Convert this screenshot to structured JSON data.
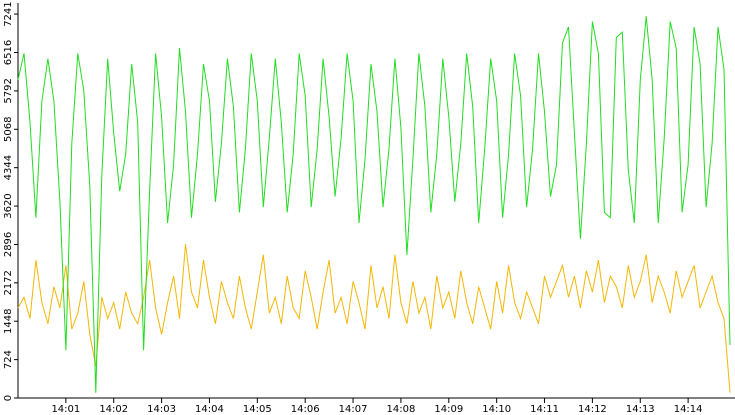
{
  "chart_data": {
    "type": "line",
    "series": [
      {
        "color": "#22dd22",
        "values": [
          6000,
          6500,
          5200,
          3400,
          5600,
          6400,
          5600,
          3700,
          900,
          4800,
          6500,
          5800,
          4000,
          100,
          4200,
          6400,
          5000,
          3900,
          4600,
          6300,
          5200,
          900,
          3900,
          6500,
          5300,
          3300,
          4400,
          6600,
          5400,
          3400,
          4600,
          6300,
          5600,
          3700,
          4800,
          6400,
          5500,
          3500,
          4700,
          6500,
          5600,
          3600,
          4900,
          6400,
          5200,
          3500,
          4600,
          6500,
          5700,
          3600,
          4700,
          6400,
          5300,
          3800,
          4900,
          6500,
          5600,
          3300,
          4500,
          6300,
          5400,
          3600,
          4700,
          6400,
          5100,
          2700,
          4500,
          6500,
          5500,
          3500,
          4600,
          6400,
          5300,
          3700,
          4800,
          6500,
          5500,
          3300,
          4700,
          6400,
          5600,
          3400,
          4600,
          6500,
          5700,
          3600,
          4700,
          6500,
          5400,
          3800,
          4400,
          6700,
          7000,
          5000,
          3000,
          4800,
          7100,
          6500,
          3500,
          3400,
          6800,
          6900,
          4300,
          3300,
          6000,
          7200,
          6000,
          3300,
          4900,
          7100,
          6600,
          3500,
          4400,
          7000,
          6300,
          3600,
          4800,
          7000,
          6200,
          1000
        ]
      },
      {
        "color": "#f2b705",
        "values": [
          1700,
          1900,
          1500,
          2600,
          1800,
          1400,
          2100,
          1700,
          2500,
          1300,
          1600,
          2200,
          1200,
          600,
          1900,
          1500,
          1800,
          1300,
          2000,
          1600,
          1400,
          1900,
          2600,
          1700,
          1200,
          1800,
          2300,
          1500,
          2900,
          2000,
          1700,
          2600,
          1900,
          1400,
          2200,
          1800,
          1500,
          2300,
          1700,
          1300,
          2000,
          2700,
          1600,
          1900,
          1400,
          2300,
          1700,
          1500,
          2400,
          1900,
          1300,
          2000,
          2600,
          1600,
          1900,
          1400,
          2200,
          1800,
          1300,
          2500,
          1700,
          2100,
          1500,
          2700,
          1800,
          1400,
          2200,
          1600,
          1900,
          1300,
          2300,
          1700,
          2000,
          1500,
          2400,
          1800,
          1400,
          2100,
          1700,
          1300,
          2200,
          1600,
          2500,
          1800,
          1500,
          2000,
          1700,
          1400,
          2300,
          1900,
          2200,
          2500,
          1900,
          2300,
          1700,
          2400,
          2000,
          2600,
          1800,
          2300,
          2100,
          1700,
          2500,
          1900,
          2200,
          2700,
          1800,
          2300,
          2000,
          1600,
          2400,
          1900,
          2200,
          2500,
          1700,
          2000,
          2300,
          1800,
          1500,
          100
        ]
      }
    ],
    "xlim": [
      0,
      119.5
    ],
    "xticks": [
      {
        "value": 8,
        "label": "14:01"
      },
      {
        "value": 16,
        "label": "14:02"
      },
      {
        "value": 24,
        "label": "14:03"
      },
      {
        "value": 32,
        "label": "14:04"
      },
      {
        "value": 40,
        "label": "14:05"
      },
      {
        "value": 48,
        "label": "14:06"
      },
      {
        "value": 56,
        "label": "14:07"
      },
      {
        "value": 64,
        "label": "14:08"
      },
      {
        "value": 72,
        "label": "14:09"
      },
      {
        "value": 80,
        "label": "14:10"
      },
      {
        "value": 88,
        "label": "14:11"
      },
      {
        "value": 96,
        "label": "14:12"
      },
      {
        "value": 104,
        "label": "14:13"
      },
      {
        "value": 112,
        "label": "14:14"
      }
    ],
    "ylim": [
      0,
      7450
    ],
    "yticks": [
      0,
      724,
      1448,
      2172,
      2896,
      3620,
      4344,
      5068,
      5792,
      6516,
      7241
    ]
  }
}
